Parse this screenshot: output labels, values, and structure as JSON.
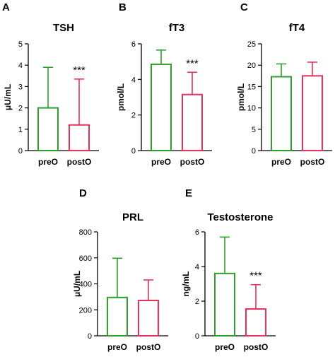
{
  "colors": {
    "preO": "#2ca02c",
    "postO": "#e8315a",
    "axis": "#000000"
  },
  "chart_data": [
    {
      "panel": "A",
      "title": "TSH",
      "type": "bar",
      "ylabel": "μU/mL",
      "ylim": [
        0,
        5
      ],
      "yticks": [
        0,
        1,
        2,
        3,
        4,
        5
      ],
      "categories": [
        "preO",
        "postO"
      ],
      "values": [
        2.0,
        1.2
      ],
      "error_upper": [
        3.9,
        3.35
      ],
      "significance": "***"
    },
    {
      "panel": "B",
      "title": "fT3",
      "type": "bar",
      "ylabel": "pmol/L",
      "ylim": [
        0,
        6
      ],
      "yticks": [
        0,
        2,
        4,
        6
      ],
      "categories": [
        "preO",
        "postO"
      ],
      "values": [
        4.85,
        3.15
      ],
      "error_upper": [
        5.65,
        4.4
      ],
      "significance": "***"
    },
    {
      "panel": "C",
      "title": "fT4",
      "type": "bar",
      "ylabel": "pmol/L",
      "ylim": [
        0,
        25
      ],
      "yticks": [
        0,
        5,
        10,
        15,
        20,
        25
      ],
      "categories": [
        "preO",
        "postO"
      ],
      "values": [
        17.3,
        17.5
      ],
      "error_upper": [
        20.3,
        20.7
      ],
      "significance": ""
    },
    {
      "panel": "D",
      "title": "PRL",
      "type": "bar",
      "ylabel": "μU/mL",
      "ylim": [
        0,
        800
      ],
      "yticks": [
        0,
        200,
        400,
        600,
        800
      ],
      "categories": [
        "preO",
        "postO"
      ],
      "values": [
        295,
        272
      ],
      "error_upper": [
        597,
        430
      ],
      "significance": ""
    },
    {
      "panel": "E",
      "title": "Testosterone",
      "type": "bar",
      "ylabel": "ng/mL",
      "ylim": [
        0,
        6
      ],
      "yticks": [
        0,
        2,
        4,
        6
      ],
      "categories": [
        "preO",
        "postO"
      ],
      "values": [
        3.6,
        1.55
      ],
      "error_upper": [
        5.7,
        2.95
      ],
      "significance": "***"
    }
  ]
}
